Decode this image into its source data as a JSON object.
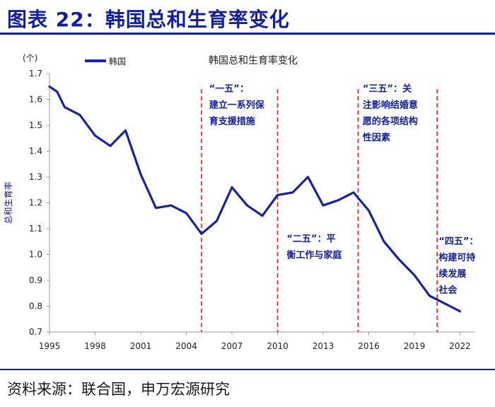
{
  "header": {
    "title": "图表 22：韩国总和生育率变化"
  },
  "footer": {
    "source": "资料来源：联合国，申万宏源研究"
  },
  "colors": {
    "accent": "#12209a",
    "line": "#17249b",
    "marker": "#e81d1d",
    "annotation": "#12209a"
  },
  "chart_data": {
    "type": "line",
    "title": "韩国总和生育率变化",
    "unit_label": "(个)",
    "ylabel": "总和生育率",
    "xlabel": "",
    "ylim": [
      0.7,
      1.7
    ],
    "yticks": [
      "0.7",
      "0.8",
      "0.9",
      "1.0",
      "1.1",
      "1.2",
      "1.3",
      "1.4",
      "1.5",
      "1.6",
      "1.7"
    ],
    "xlim": [
      1995,
      2023
    ],
    "xticks": [
      "1995",
      "1998",
      "2001",
      "2004",
      "2007",
      "2010",
      "2013",
      "2016",
      "2019",
      "2022"
    ],
    "legend": {
      "label": "韩国",
      "position": "top-left"
    },
    "series": [
      {
        "name": "韩国",
        "x": [
          1995,
          1995.5,
          1996,
          1997,
          1998,
          1999,
          2000,
          2001,
          2002,
          2003,
          2004,
          2005,
          2006,
          2007,
          2008,
          2009,
          2010,
          2011,
          2012,
          2013,
          2014,
          2015,
          2016,
          2017,
          2018,
          2019,
          2020,
          2021,
          2022
        ],
        "values": [
          1.65,
          1.63,
          1.57,
          1.54,
          1.46,
          1.42,
          1.48,
          1.31,
          1.18,
          1.19,
          1.16,
          1.08,
          1.13,
          1.26,
          1.19,
          1.15,
          1.23,
          1.24,
          1.3,
          1.19,
          1.21,
          1.24,
          1.17,
          1.05,
          0.98,
          0.92,
          0.84,
          0.81,
          0.78
        ]
      }
    ],
    "reference_lines": [
      2005,
      2010,
      2015.3,
      2020.5
    ],
    "annotations": [
      {
        "x": 2005.5,
        "y": 1.63,
        "lines": [
          "“一五”：",
          "建立一系列保",
          "育支援措施"
        ]
      },
      {
        "x": 2010.6,
        "y": 1.05,
        "lines": [
          "“二五”：平",
          "衡工作与家庭"
        ]
      },
      {
        "x": 2015.6,
        "y": 1.63,
        "lines": [
          "“三五”：关",
          "注影响结婚意",
          "愿的各项结构",
          "性因素"
        ]
      },
      {
        "x": 2020.6,
        "y": 1.04,
        "lines": [
          "“四五”：",
          "构建可持",
          "续发展",
          "社会"
        ]
      }
    ]
  }
}
